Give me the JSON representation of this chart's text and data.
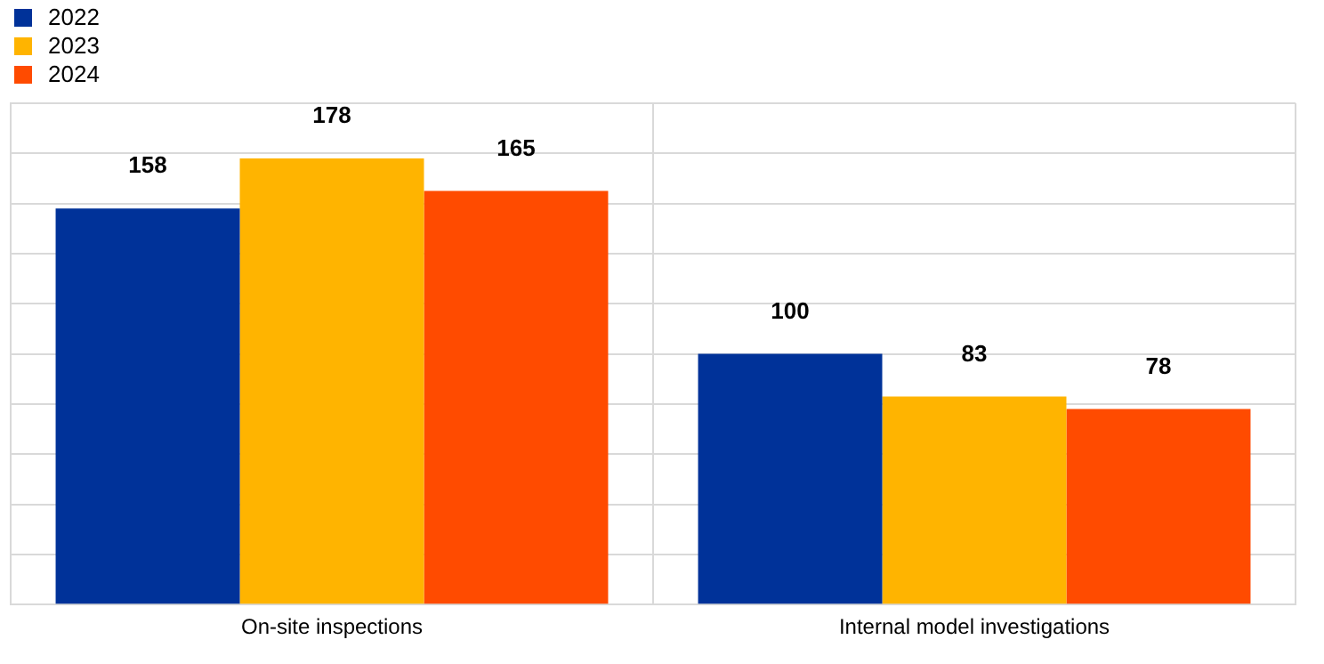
{
  "chart_data": {
    "type": "bar",
    "categories": [
      "On-site inspections",
      "Internal model investigations"
    ],
    "series": [
      {
        "name": "2022",
        "color": "#003299",
        "values": [
          158,
          100
        ]
      },
      {
        "name": "2023",
        "color": "#ffb400",
        "values": [
          178,
          83
        ]
      },
      {
        "name": "2024",
        "color": "#ff4b00",
        "values": [
          165,
          78
        ]
      }
    ],
    "ylim": [
      0,
      200
    ],
    "yticks": [
      {
        "value": 0,
        "label": null
      },
      {
        "value": 20,
        "label": null
      },
      {
        "value": 40,
        "label": null
      },
      {
        "value": 60,
        "label": null
      },
      {
        "value": 80,
        "label": null
      },
      {
        "value": 100,
        "label": null
      },
      {
        "value": 120,
        "label": null
      },
      {
        "value": 140,
        "label": null
      },
      {
        "value": 160,
        "label": null
      },
      {
        "value": 180,
        "label": null
      },
      {
        "value": 200,
        "label": null
      }
    ],
    "tick_labels": "x",
    "grid": true,
    "legend": "top left",
    "data_labels": true
  }
}
